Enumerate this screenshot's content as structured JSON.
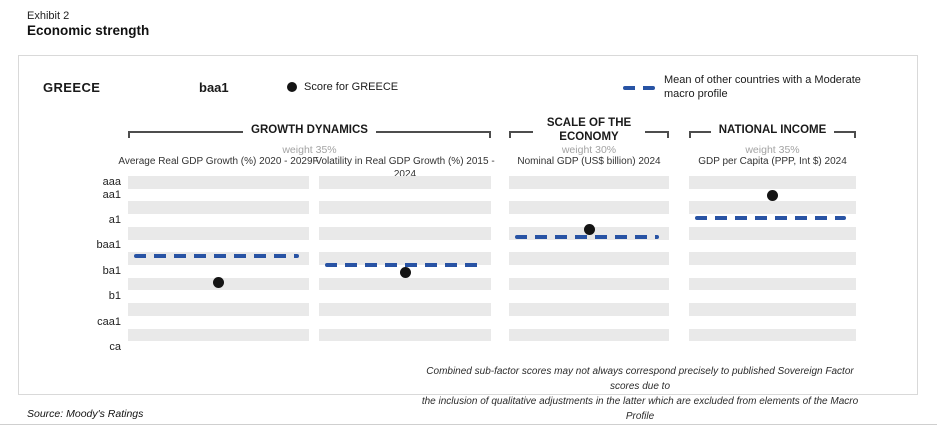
{
  "exhibit": {
    "label": "Exhibit 2",
    "title": "Economic strength"
  },
  "header": {
    "country": "GREECE",
    "rating": "baa1",
    "score_legend": "Score for GREECE",
    "mean_legend": "Mean of other countries with a Moderate macro profile"
  },
  "footnote": {
    "line1": "Combined sub-factor scores may not always correspond precisely to published Sovereign Factor scores due to",
    "line2": "the inclusion of qualitative adjustments in the latter which are excluded from elements of the Macro Profile"
  },
  "source": "Source: Moody's Ratings",
  "colors": {
    "mean_blue": "#2853a4",
    "score_black": "#141414",
    "band_gray": "#e9e9e9",
    "weight_gray": "#a3a3a3",
    "border_gray": "#d9d9d9"
  },
  "chart_data": {
    "type": "scatter",
    "title": "Economic strength",
    "unit_note": "Vertical scale is Moody's rating notches; positions measured in band units from aaa = 0 (top) downward. Black dot = score for Greece, blue dashed line = mean of other countries with a Moderate macro profile.",
    "y_axis": {
      "bands": 14,
      "labels": [
        {
          "text": "aaa",
          "pos": 0
        },
        {
          "text": "aa1",
          "pos": 1
        },
        {
          "text": "a1",
          "pos": 3
        },
        {
          "text": "baa1",
          "pos": 5
        },
        {
          "text": "ba1",
          "pos": 7
        },
        {
          "text": "b1",
          "pos": 9
        },
        {
          "text": "caa1",
          "pos": 11
        },
        {
          "text": "ca",
          "pos": 13
        }
      ]
    },
    "groups": [
      {
        "title": "GROWTH DYNAMICS",
        "weight": "weight 35%",
        "panels": [
          {
            "label": "Average Real GDP Growth (%) 2020 - 2029F",
            "mean": 5.8,
            "mean_approx": "~baa2/baa3",
            "score": 7.9,
            "score_approx": "~ba2"
          },
          {
            "label": "Volatility in Real GDP Growth (%) 2015 - 2024",
            "mean": 6.5,
            "mean_approx": "~baa3",
            "score": 7.1,
            "score_approx": "~ba1"
          }
        ]
      },
      {
        "title": "SCALE OF THE ECONOMY",
        "weight": "weight 30%",
        "panels": [
          {
            "label": "Nominal GDP (US$ billion) 2024",
            "mean": 4.3,
            "mean_approx": "~a3",
            "score": 3.7,
            "score_approx": "~a2"
          }
        ]
      },
      {
        "title": "NATIONAL INCOME",
        "weight": "weight 35%",
        "panels": [
          {
            "label": "GDP per Capita (PPP, Int $) 2024",
            "mean": 2.8,
            "mean_approx": "~a1",
            "score": 1.0,
            "score_approx": "~aa1"
          }
        ]
      }
    ]
  }
}
